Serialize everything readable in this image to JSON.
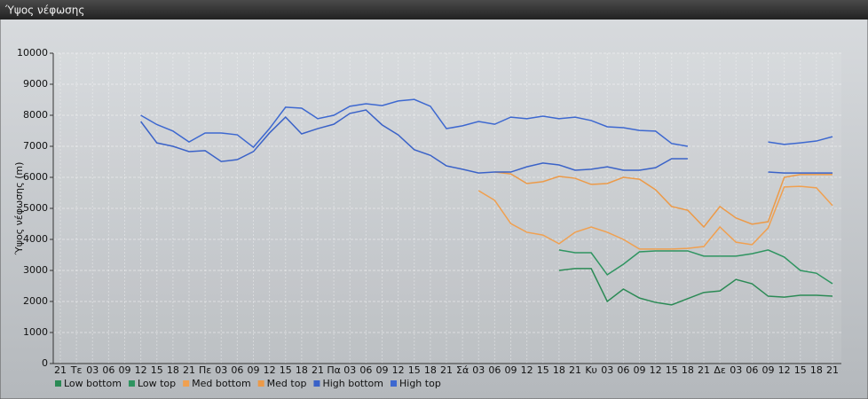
{
  "chart_data": {
    "type": "line",
    "title": "Ύψος νέφωσης",
    "ylabel": "Ύψος νέφωσης (m)",
    "categories": [
      "21",
      "Τε",
      "03",
      "06",
      "09",
      "12",
      "15",
      "18",
      "21",
      "Πε",
      "03",
      "06",
      "09",
      "12",
      "15",
      "18",
      "21",
      "Πα",
      "03",
      "06",
      "09",
      "12",
      "15",
      "18",
      "21",
      "Σά",
      "03",
      "06",
      "09",
      "12",
      "15",
      "18",
      "21",
      "Κυ",
      "03",
      "06",
      "09",
      "12",
      "15",
      "18",
      "21",
      "Δε",
      "03",
      "06",
      "09",
      "12",
      "15",
      "18",
      "21"
    ],
    "ylim": [
      0,
      10000
    ],
    "yticks": [
      0,
      1000,
      2000,
      3000,
      4000,
      5000,
      6000,
      7000,
      8000,
      9000,
      10000
    ],
    "grid": true,
    "series": [
      {
        "name": "Low bottom",
        "color": "#2b8a55",
        "values": [
          null,
          null,
          null,
          null,
          null,
          null,
          null,
          null,
          null,
          null,
          null,
          null,
          null,
          null,
          null,
          null,
          null,
          null,
          null,
          null,
          null,
          null,
          null,
          null,
          null,
          null,
          null,
          null,
          null,
          null,
          null,
          3000,
          3060,
          3060,
          2000,
          2400,
          2110,
          1970,
          1890,
          2090,
          2290,
          2340,
          2710,
          2570,
          2170,
          2140,
          2200,
          2200,
          2170
        ]
      },
      {
        "name": "Low top",
        "color": "#2e9460",
        "values": [
          null,
          null,
          null,
          null,
          null,
          null,
          null,
          null,
          null,
          null,
          null,
          null,
          null,
          null,
          null,
          null,
          null,
          null,
          null,
          null,
          null,
          null,
          null,
          null,
          null,
          null,
          null,
          null,
          null,
          null,
          null,
          3660,
          3570,
          3570,
          2860,
          3200,
          3600,
          3630,
          3630,
          3630,
          3460,
          3460,
          3460,
          3540,
          3660,
          3430,
          3000,
          2910,
          2570
        ]
      },
      {
        "name": "Med bottom",
        "color": "#f0a050",
        "values": [
          null,
          null,
          null,
          null,
          null,
          null,
          null,
          null,
          null,
          null,
          null,
          null,
          null,
          null,
          null,
          null,
          null,
          null,
          null,
          null,
          null,
          null,
          null,
          null,
          null,
          null,
          5570,
          5260,
          4510,
          4230,
          4140,
          3860,
          4230,
          4400,
          4230,
          4000,
          3690,
          3690,
          3690,
          3710,
          3770,
          4400,
          3910,
          3830,
          4370,
          5690,
          5710,
          5660,
          5090
        ]
      },
      {
        "name": "Med top",
        "color": "#ec9a48",
        "values": [
          null,
          null,
          null,
          null,
          null,
          null,
          null,
          null,
          null,
          null,
          null,
          null,
          null,
          null,
          null,
          null,
          null,
          null,
          null,
          null,
          null,
          null,
          null,
          null,
          null,
          null,
          null,
          6170,
          6110,
          5800,
          5860,
          6030,
          5970,
          5770,
          5800,
          6000,
          5940,
          5600,
          5060,
          4940,
          4400,
          5060,
          4690,
          4490,
          4570,
          6000,
          6090,
          6090,
          6090
        ]
      },
      {
        "name": "High bottom",
        "color": "#3a62c8",
        "values": [
          null,
          null,
          null,
          null,
          null,
          7800,
          7110,
          7000,
          6830,
          6860,
          6510,
          6570,
          6830,
          7430,
          7940,
          7400,
          7570,
          7710,
          8060,
          8170,
          7690,
          7370,
          6890,
          6710,
          6370,
          6260,
          6140,
          6170,
          6170,
          6340,
          6460,
          6400,
          6230,
          6260,
          6340,
          6230,
          6230,
          6310,
          6600,
          6600,
          null,
          null,
          null,
          null,
          6170,
          6140,
          6140,
          6140,
          6140
        ]
      },
      {
        "name": "High top",
        "color": "#3d68d0",
        "values": [
          null,
          null,
          null,
          null,
          null,
          8000,
          7700,
          7490,
          7140,
          7430,
          7430,
          7370,
          6970,
          7570,
          8260,
          8230,
          7890,
          8000,
          8290,
          8370,
          8310,
          8460,
          8510,
          8290,
          7570,
          7660,
          7800,
          7710,
          7940,
          7890,
          7970,
          7890,
          7940,
          7830,
          7630,
          7600,
          7510,
          7490,
          7090,
          7000,
          null,
          null,
          null,
          null,
          7140,
          7060,
          7110,
          7170,
          7310
        ]
      }
    ]
  }
}
